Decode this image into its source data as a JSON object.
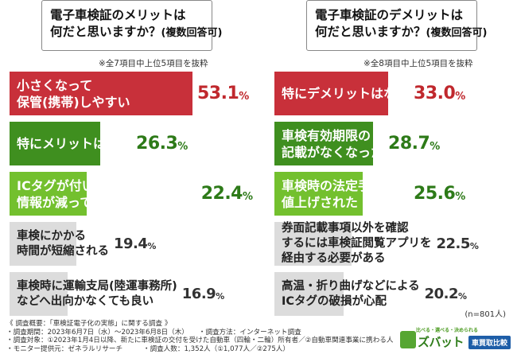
{
  "chart_data": [
    {
      "type": "bar",
      "title_line1": "電子車検証のメリットは",
      "title_line2": "何だと思いますか？",
      "title_paren": "(複数回答可)",
      "note": "※全7項目中上位5項目を抜粋",
      "unit": "%",
      "categories": [
        [
          "小さくなって",
          "保管(携帯)しやすい"
        ],
        [
          "特にメリットはない"
        ],
        [
          "ICタグが付いたため券面記載の",
          "情報が減って見やすい"
        ],
        [
          "車検にかかる",
          "時間が短縮される"
        ],
        [
          "車検時に運輸支局(陸運事務所)",
          "などへ出向かなくても良い"
        ]
      ],
      "values": [
        53.1,
        26.3,
        22.4,
        19.4,
        16.9
      ],
      "colors": [
        "#c8303a",
        "#3f8f1f",
        "#73c02e",
        "#dcdcdc",
        "#dcdcdc"
      ]
    },
    {
      "type": "bar",
      "title_line1": "電子車検証のデメリットは",
      "title_line2": "何だと思いますか？",
      "title_paren": "(複数回答可)",
      "note": "※全8項目中上位5項目を抜粋",
      "unit": "%",
      "categories": [
        [
          "特にデメリットはない"
        ],
        [
          "車検有効期限の",
          "記載がなくなった"
        ],
        [
          "車検時の法定手数料が",
          "値上げされた"
        ],
        [
          "券面記載事項以外を確認",
          "するには車検証閲覧アプリを",
          "経由する必要がある"
        ],
        [
          "高温・折り曲げなどによる",
          "ICタグの破損が心配"
        ]
      ],
      "values": [
        33.0,
        28.7,
        25.6,
        22.5,
        20.2
      ],
      "colors": [
        "#c8303a",
        "#3f8f1f",
        "#73c02e",
        "#dcdcdc",
        "#dcdcdc"
      ]
    }
  ],
  "sample_size": "(n=801人)",
  "footer": {
    "line1": "《 調査概要：「車検証電子化の実態」に関する調査 》",
    "line2": "・調査期間：2023年6月7日（水）～2023年6月8日（木）　　・調査方法：インターネット調査",
    "line3": "・調査対象：①2023年1月4日以降、新たに車検証の交付を受けた自動車（四輪・二輪）所有者／②自動車関連事業に携わる人",
    "line4": "・モニター提供元：ゼネラルリサーチ　　　・調査人数：1,352人（①1,077人／②275人）"
  },
  "logo": {
    "tagline": "比べる・選べる・決められる",
    "brand": "ズバット",
    "sub": "車買取比較"
  }
}
